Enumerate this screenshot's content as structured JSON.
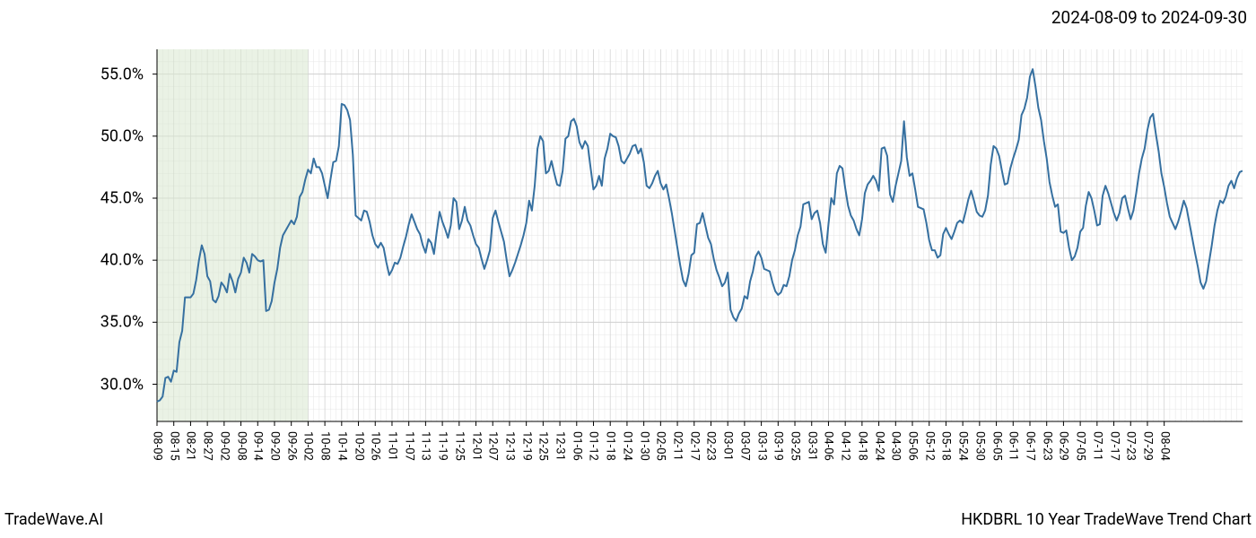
{
  "header": {
    "date_range": "2024-08-09 to 2024-09-30"
  },
  "footer": {
    "left": "TradeWave.AI",
    "right": "HKDBRL 10 Year TradeWave Trend Chart"
  },
  "chart": {
    "type": "line",
    "line_color": "#3670a0",
    "line_width": 2.0,
    "background_color": "#ffffff",
    "grid_color": "#e5e5e5",
    "grid_major_color": "#d0d0d0",
    "axis_color": "#000000",
    "highlight_band": {
      "fill": "#d8e8d0",
      "opacity": 0.55,
      "x_start_idx": 0,
      "x_end_idx": 26
    },
    "y_axis": {
      "min": 27,
      "max": 57,
      "ticks": [
        30,
        35,
        40,
        45,
        50,
        55
      ],
      "tick_labels": [
        "30.0%",
        "35.0%",
        "40.0%",
        "45.0%",
        "50.0%",
        "55.0%"
      ],
      "label_fontsize": 18
    },
    "x_axis": {
      "tick_labels": [
        "08-09",
        "08-15",
        "08-21",
        "08-27",
        "09-02",
        "09-08",
        "09-14",
        "09-20",
        "09-26",
        "10-02",
        "10-08",
        "10-14",
        "10-20",
        "10-26",
        "11-01",
        "11-07",
        "11-13",
        "11-19",
        "11-25",
        "12-01",
        "12-07",
        "12-13",
        "12-19",
        "12-25",
        "12-31",
        "01-06",
        "01-12",
        "01-18",
        "01-24",
        "01-30",
        "02-05",
        "02-11",
        "02-17",
        "02-23",
        "03-01",
        "03-07",
        "03-13",
        "03-19",
        "03-25",
        "03-31",
        "04-06",
        "04-12",
        "04-18",
        "04-24",
        "04-30",
        "05-06",
        "05-12",
        "05-18",
        "05-24",
        "05-30",
        "06-05",
        "06-11",
        "06-17",
        "06-23",
        "06-29",
        "07-05",
        "07-11",
        "07-17",
        "07-23",
        "07-29",
        "08-04"
      ],
      "tick_step_days": 6,
      "label_fontsize": 13,
      "label_rotation": 90
    },
    "series": {
      "values": [
        28.6,
        28.7,
        29.0,
        30.5,
        30.6,
        30.2,
        31.1,
        31.0,
        33.4,
        34.3,
        37.0,
        37.0,
        37.0,
        37.3,
        38.4,
        40.0,
        41.2,
        40.5,
        38.7,
        38.3,
        36.8,
        36.6,
        37.1,
        38.2,
        37.9,
        37.4,
        38.9,
        38.3,
        37.4,
        38.5,
        39.0,
        40.2,
        39.8,
        39.0,
        40.5,
        40.3,
        40.0,
        39.9,
        40.0,
        35.9,
        36.0,
        36.7,
        38.2,
        39.3,
        41.0,
        42.0,
        42.4,
        42.8,
        43.2,
        42.9,
        43.5,
        45.1,
        45.5,
        46.5,
        47.3,
        47.0,
        48.2,
        47.5,
        47.5,
        47.0,
        46.0,
        45.0,
        46.5,
        47.9,
        48.0,
        49.2,
        52.6,
        52.5,
        52.1,
        51.3,
        48.5,
        43.6,
        43.4,
        43.2,
        44.0,
        43.9,
        43.1,
        42.0,
        41.3,
        41.0,
        41.4,
        41.0,
        39.8,
        38.8,
        39.2,
        39.8,
        39.7,
        40.2,
        41.1,
        41.9,
        42.9,
        43.7,
        43.1,
        42.5,
        42.1,
        41.2,
        40.6,
        41.7,
        41.4,
        40.5,
        42.3,
        43.9,
        43.1,
        42.5,
        41.8,
        42.8,
        45.0,
        44.7,
        42.5,
        43.2,
        44.3,
        43.2,
        42.8,
        42.0,
        41.3,
        41.0,
        40.1,
        39.3,
        40.0,
        40.8,
        43.4,
        44.0,
        43.1,
        42.3,
        41.5,
        40.0,
        38.7,
        39.2,
        39.8,
        40.5,
        41.2,
        42.0,
        43.0,
        44.8,
        44.0,
        46.0,
        49.0,
        50.0,
        49.6,
        47.0,
        47.2,
        48.0,
        47.0,
        46.1,
        46.0,
        47.2,
        49.8,
        50.0,
        51.2,
        51.4,
        50.8,
        49.5,
        49.0,
        49.6,
        49.2,
        47.4,
        45.7,
        46.0,
        46.8,
        46.0,
        48.2,
        49.0,
        50.2,
        50.0,
        49.9,
        49.2,
        48.0,
        47.8,
        48.2,
        48.6,
        49.2,
        49.3,
        48.6,
        49.0,
        47.9,
        46.0,
        45.8,
        46.2,
        46.8,
        47.2,
        46.2,
        45.7,
        46.1,
        45.0,
        43.8,
        42.4,
        41.0,
        39.6,
        38.4,
        37.9,
        38.9,
        40.4,
        40.6,
        42.9,
        43.0,
        43.8,
        42.8,
        41.8,
        41.3,
        40.1,
        39.2,
        38.6,
        37.9,
        38.2,
        39.0,
        36.0,
        35.4,
        35.1,
        35.7,
        36.1,
        37.1,
        36.9,
        38.3,
        39.1,
        40.3,
        40.7,
        40.2,
        39.3,
        39.2,
        39.1,
        38.2,
        37.5,
        37.2,
        37.4,
        38.0,
        37.9,
        38.7,
        40.0,
        40.8,
        42.0,
        42.7,
        44.5,
        44.6,
        44.7,
        43.3,
        43.8,
        44.0,
        43.0,
        41.3,
        40.6,
        42.9,
        45.0,
        44.5,
        47.0,
        47.6,
        47.4,
        45.8,
        44.4,
        43.6,
        43.2,
        42.5,
        42.0,
        43.3,
        45.4,
        46.1,
        46.4,
        46.8,
        46.4,
        45.6,
        49.0,
        49.1,
        48.4,
        45.3,
        44.7,
        46.0,
        47.0,
        48.0,
        51.2,
        48.3,
        46.8,
        47.0,
        45.7,
        44.3,
        44.2,
        44.1,
        43.0,
        41.6,
        40.8,
        40.8,
        40.2,
        40.4,
        42.1,
        42.6,
        42.1,
        41.7,
        42.3,
        43.0,
        43.2,
        43.0,
        43.9,
        44.9,
        45.6,
        44.8,
        43.9,
        43.6,
        43.5,
        44.0,
        45.2,
        47.7,
        49.2,
        49.0,
        48.4,
        47.2,
        46.1,
        46.2,
        47.4,
        48.2,
        48.9,
        49.7,
        51.7,
        52.2,
        53.1,
        54.8,
        55.4,
        54.0,
        52.3,
        51.3,
        49.6,
        48.2,
        46.3,
        45.2,
        44.3,
        44.5,
        42.3,
        42.2,
        42.4,
        41.0,
        40.0,
        40.3,
        41.0,
        42.3,
        42.6,
        44.4,
        45.5,
        45.0,
        44.0,
        42.8,
        42.9,
        45.2,
        46.0,
        45.4,
        44.6,
        43.8,
        43.2,
        43.8,
        45.0,
        45.2,
        44.2,
        43.3,
        44.0,
        45.4,
        47.0,
        48.2,
        49.0,
        50.5,
        51.5,
        51.8,
        50.2,
        48.8,
        47.0,
        45.9,
        44.6,
        43.5,
        43.0,
        42.5,
        43.1,
        43.9,
        44.8,
        44.2,
        43.0,
        41.8,
        40.6,
        39.5,
        38.2,
        37.7,
        38.3,
        39.8,
        41.2,
        42.8,
        44.0,
        44.8,
        44.6,
        45.1,
        46.0,
        46.4,
        45.8,
        46.6,
        47.1,
        47.2
      ]
    }
  }
}
